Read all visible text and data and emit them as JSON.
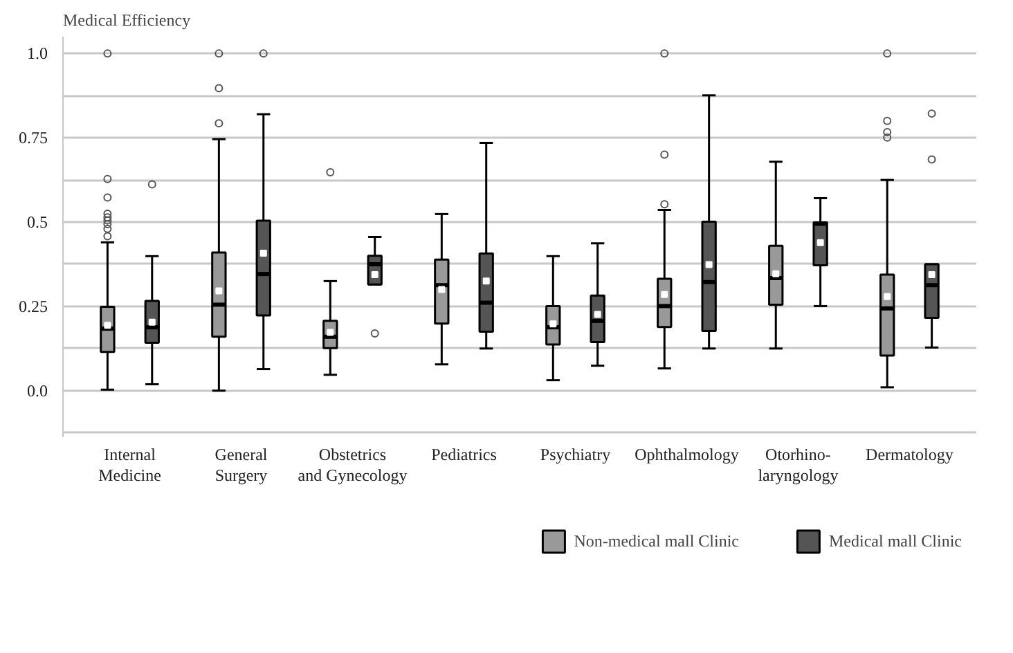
{
  "chart_data": {
    "type": "box",
    "ylabel": "Medical Efficiency",
    "categories": [
      "Internal\nMedicine",
      "General\nSurgery",
      "Obstetrics\nand Gynecology",
      "Pediatrics",
      "Psychiatry",
      "Ophthalmology",
      "Otorhino-\nlaryngology",
      "Dermatology"
    ],
    "ylim": [
      -0.14,
      1.05
    ],
    "yticks": [
      {
        "value": -0.125,
        "label": null
      },
      {
        "value": 0,
        "label": "0.0"
      },
      {
        "value": 0.125,
        "label": null
      },
      0.25,
      {
        "value": 0.375,
        "label": null
      },
      0.5,
      {
        "value": 0.625,
        "label": null
      },
      0.75,
      {
        "value": 0.875,
        "label": null
      },
      {
        "value": 1,
        "label": "1.0"
      }
    ],
    "grid": "y",
    "legend": "bottom right",
    "series": [
      {
        "name": "Non-medical mall Clinic",
        "color": "#999999",
        "boxes": [
          {
            "low": 0.003,
            "q1": 0.115,
            "median": 0.184,
            "q3": 0.249,
            "high": 0.44,
            "mean": 0.194,
            "outliers": [
              0.458,
              0.48,
              0.494,
              0.505,
              0.514,
              0.525,
              0.573,
              0.628,
              1.0
            ]
          },
          {
            "low": 0.0,
            "q1": 0.16,
            "median": 0.255,
            "q3": 0.41,
            "high": 0.746,
            "mean": 0.296,
            "outliers": [
              0.793,
              0.897,
              1.0
            ]
          },
          {
            "low": 0.047,
            "q1": 0.126,
            "median": 0.16,
            "q3": 0.207,
            "high": 0.325,
            "mean": 0.173,
            "outliers": [
              0.648
            ]
          },
          {
            "low": 0.078,
            "q1": 0.199,
            "median": 0.313,
            "q3": 0.389,
            "high": 0.524,
            "mean": 0.3
          },
          {
            "low": 0.031,
            "q1": 0.137,
            "median": 0.188,
            "q3": 0.251,
            "high": 0.399,
            "mean": 0.198
          },
          {
            "low": 0.066,
            "q1": 0.189,
            "median": 0.251,
            "q3": 0.332,
            "high": 0.536,
            "mean": 0.285,
            "outliers": [
              0.553,
              0.7,
              1.0
            ]
          },
          {
            "low": 0.125,
            "q1": 0.255,
            "median": 0.334,
            "q3": 0.43,
            "high": 0.679,
            "mean": 0.347
          },
          {
            "low": 0.01,
            "q1": 0.104,
            "median": 0.244,
            "q3": 0.344,
            "high": 0.625,
            "mean": 0.279,
            "outliers": [
              0.751,
              0.767,
              0.8,
              1.0
            ]
          }
        ]
      },
      {
        "name": "Medical mall Clinic",
        "color": "#555555",
        "boxes": [
          {
            "low": 0.019,
            "q1": 0.142,
            "median": 0.188,
            "q3": 0.266,
            "high": 0.399,
            "mean": 0.203,
            "outliers": [
              0.612
            ]
          },
          {
            "low": 0.064,
            "q1": 0.223,
            "median": 0.346,
            "q3": 0.504,
            "high": 0.82,
            "mean": 0.408,
            "outliers": [
              1.0
            ]
          },
          {
            "low": 0.315,
            "q1": 0.315,
            "median": 0.375,
            "q3": 0.4,
            "high": 0.456,
            "mean": 0.344,
            "outliers": [
              0.17
            ]
          },
          {
            "low": 0.125,
            "q1": 0.175,
            "median": 0.261,
            "q3": 0.407,
            "high": 0.735,
            "mean": 0.325
          },
          {
            "low": 0.074,
            "q1": 0.144,
            "median": 0.207,
            "q3": 0.282,
            "high": 0.437,
            "mean": 0.226
          },
          {
            "low": 0.125,
            "q1": 0.177,
            "median": 0.322,
            "q3": 0.501,
            "high": 0.876,
            "mean": 0.374
          },
          {
            "low": 0.251,
            "q1": 0.372,
            "median": 0.495,
            "q3": 0.499,
            "high": 0.571,
            "mean": 0.439
          },
          {
            "low": 0.128,
            "q1": 0.216,
            "median": 0.313,
            "q3": 0.375,
            "high": 0.375,
            "mean": 0.344,
            "outliers": [
              0.686,
              0.822
            ]
          }
        ]
      }
    ]
  }
}
